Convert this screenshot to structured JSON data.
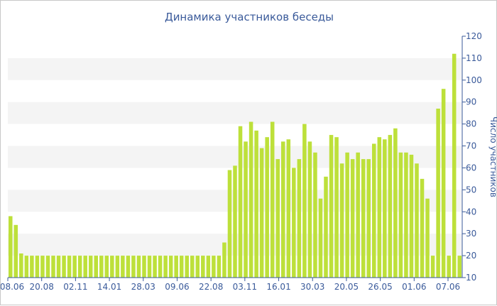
{
  "chart_data": {
    "type": "bar",
    "title": "Динамика участников беседы",
    "ylabel": "Число участников",
    "ylim": [
      10,
      120
    ],
    "yticks": [
      10,
      20,
      30,
      40,
      50,
      60,
      70,
      80,
      90,
      100,
      110,
      120
    ],
    "x_tick_labels": [
      "08.06",
      "20.08",
      "02.11",
      "14.01",
      "28.03",
      "09.06",
      "22.08",
      "03.11",
      "16.01",
      "30.03",
      "20.05",
      "26.05",
      "01.06",
      "07.06"
    ],
    "values": [
      38,
      34,
      21,
      20,
      20,
      20,
      20,
      20,
      20,
      20,
      20,
      20,
      20,
      20,
      20,
      20,
      20,
      20,
      20,
      20,
      20,
      20,
      20,
      20,
      20,
      20,
      20,
      20,
      20,
      20,
      20,
      20,
      20,
      20,
      20,
      20,
      20,
      20,
      20,
      20,
      26,
      59,
      61,
      79,
      72,
      81,
      77,
      69,
      74,
      81,
      64,
      72,
      73,
      60,
      64,
      80,
      72,
      67,
      46,
      56,
      75,
      74,
      62,
      67,
      64,
      67,
      64,
      64,
      71,
      74,
      73,
      75,
      78,
      67,
      67,
      66,
      62,
      55,
      46,
      20,
      87,
      96,
      20,
      112,
      20
    ],
    "bar_color": "#bde03a",
    "band_color": "#f4f4f4",
    "grid": true,
    "y_axis_side": "right"
  }
}
